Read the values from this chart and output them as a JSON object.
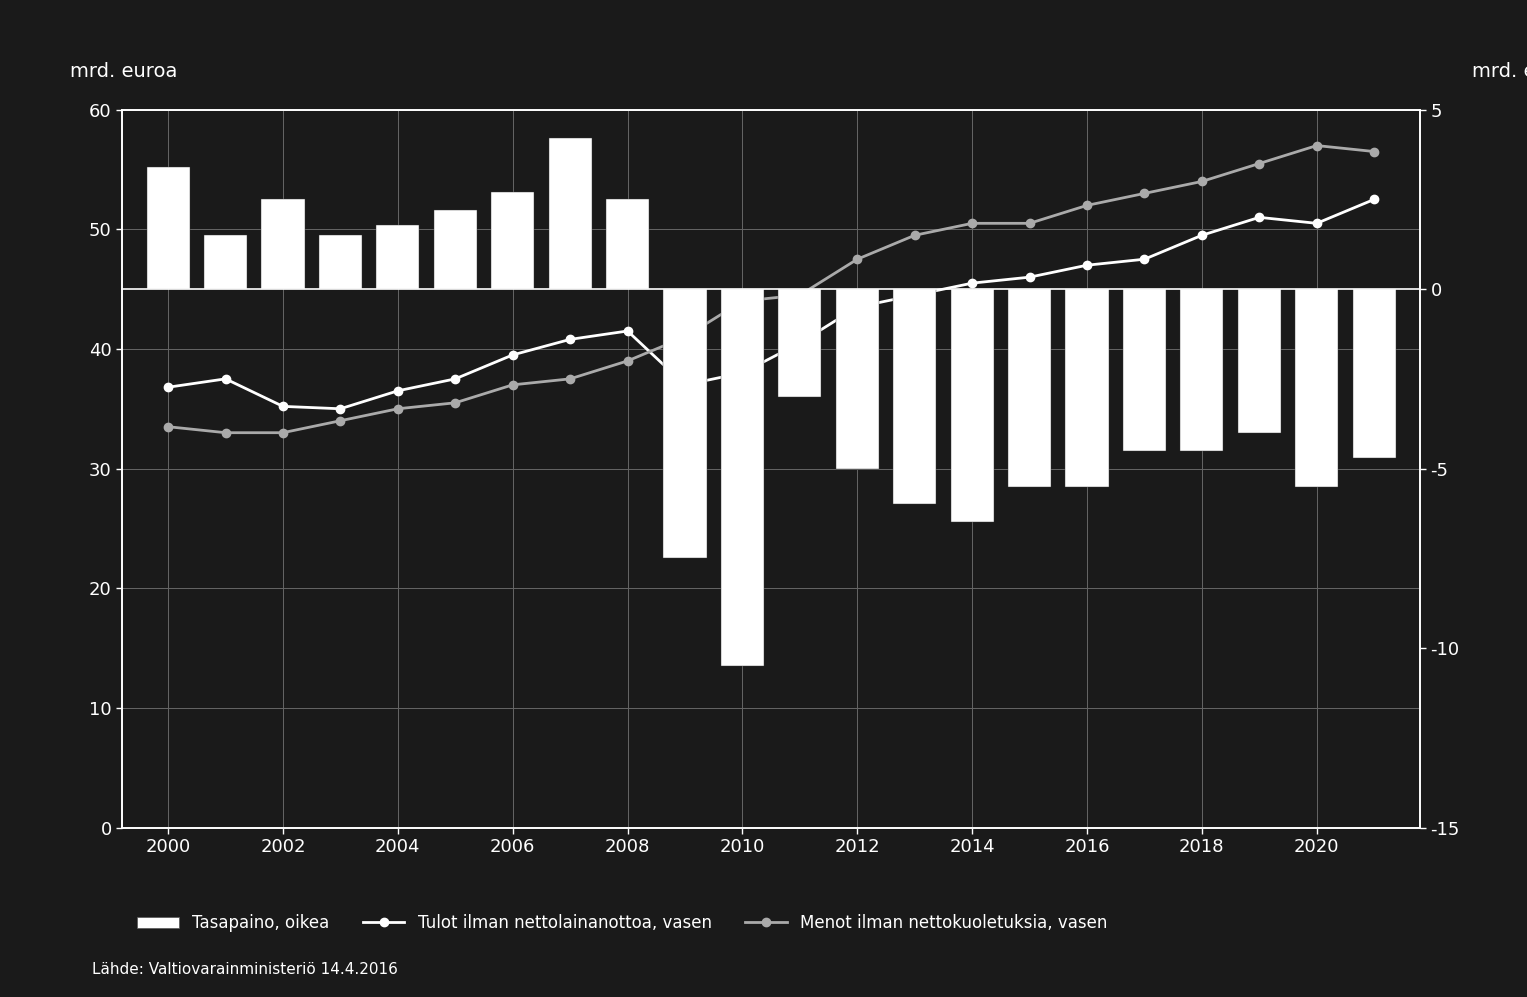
{
  "years": [
    2000,
    2001,
    2002,
    2003,
    2004,
    2005,
    2006,
    2007,
    2008,
    2009,
    2010,
    2011,
    2012,
    2013,
    2014,
    2015,
    2016,
    2017,
    2018,
    2019,
    2020,
    2021
  ],
  "tulot": [
    36.8,
    37.5,
    35.2,
    35.0,
    36.5,
    37.5,
    39.5,
    40.8,
    41.5,
    37.0,
    38.0,
    40.5,
    43.5,
    44.5,
    45.5,
    46.0,
    47.0,
    47.5,
    49.5,
    51.0,
    50.5,
    52.5
  ],
  "menot": [
    33.5,
    33.0,
    33.0,
    34.0,
    35.0,
    35.5,
    37.0,
    37.5,
    39.0,
    41.0,
    44.0,
    44.5,
    47.5,
    49.5,
    50.5,
    50.5,
    52.0,
    53.0,
    54.0,
    55.5,
    57.0,
    56.5
  ],
  "tasapaino": [
    3.4,
    1.5,
    2.5,
    1.5,
    1.8,
    2.2,
    2.7,
    4.2,
    2.5,
    -7.5,
    -10.5,
    -3.0,
    -5.0,
    -6.0,
    -6.5,
    -5.5,
    -5.5,
    -4.5,
    -4.5,
    -4.0,
    -5.5,
    -4.7
  ],
  "ylim_left": [
    0,
    60
  ],
  "ylim_right": [
    -15,
    5
  ],
  "yticks_left": [
    0,
    10,
    20,
    30,
    40,
    50,
    60
  ],
  "yticks_right": [
    -15,
    -10,
    -5,
    0,
    5
  ],
  "ylabel_left": "mrd. euroa",
  "ylabel_right": "mrd. euroa",
  "bar_color": "#ffffff",
  "bar_edge_color": "#333333",
  "line_tulot_color": "#ffffff",
  "line_menot_color": "#aaaaaa",
  "background_color": "#1a1a1a",
  "plot_bg_color": "#1a1a1a",
  "grid_color": "#666666",
  "text_color": "#ffffff",
  "legend_tasapaino": "Tasapaino, oikea",
  "legend_tulot": "Tulot ilman nettolainanottoa, vasen",
  "legend_menot": "Menot ilman nettokuoletuksia, vasen",
  "source_text": "Lähde: Valtiovarainministeriö 14.4.2016"
}
